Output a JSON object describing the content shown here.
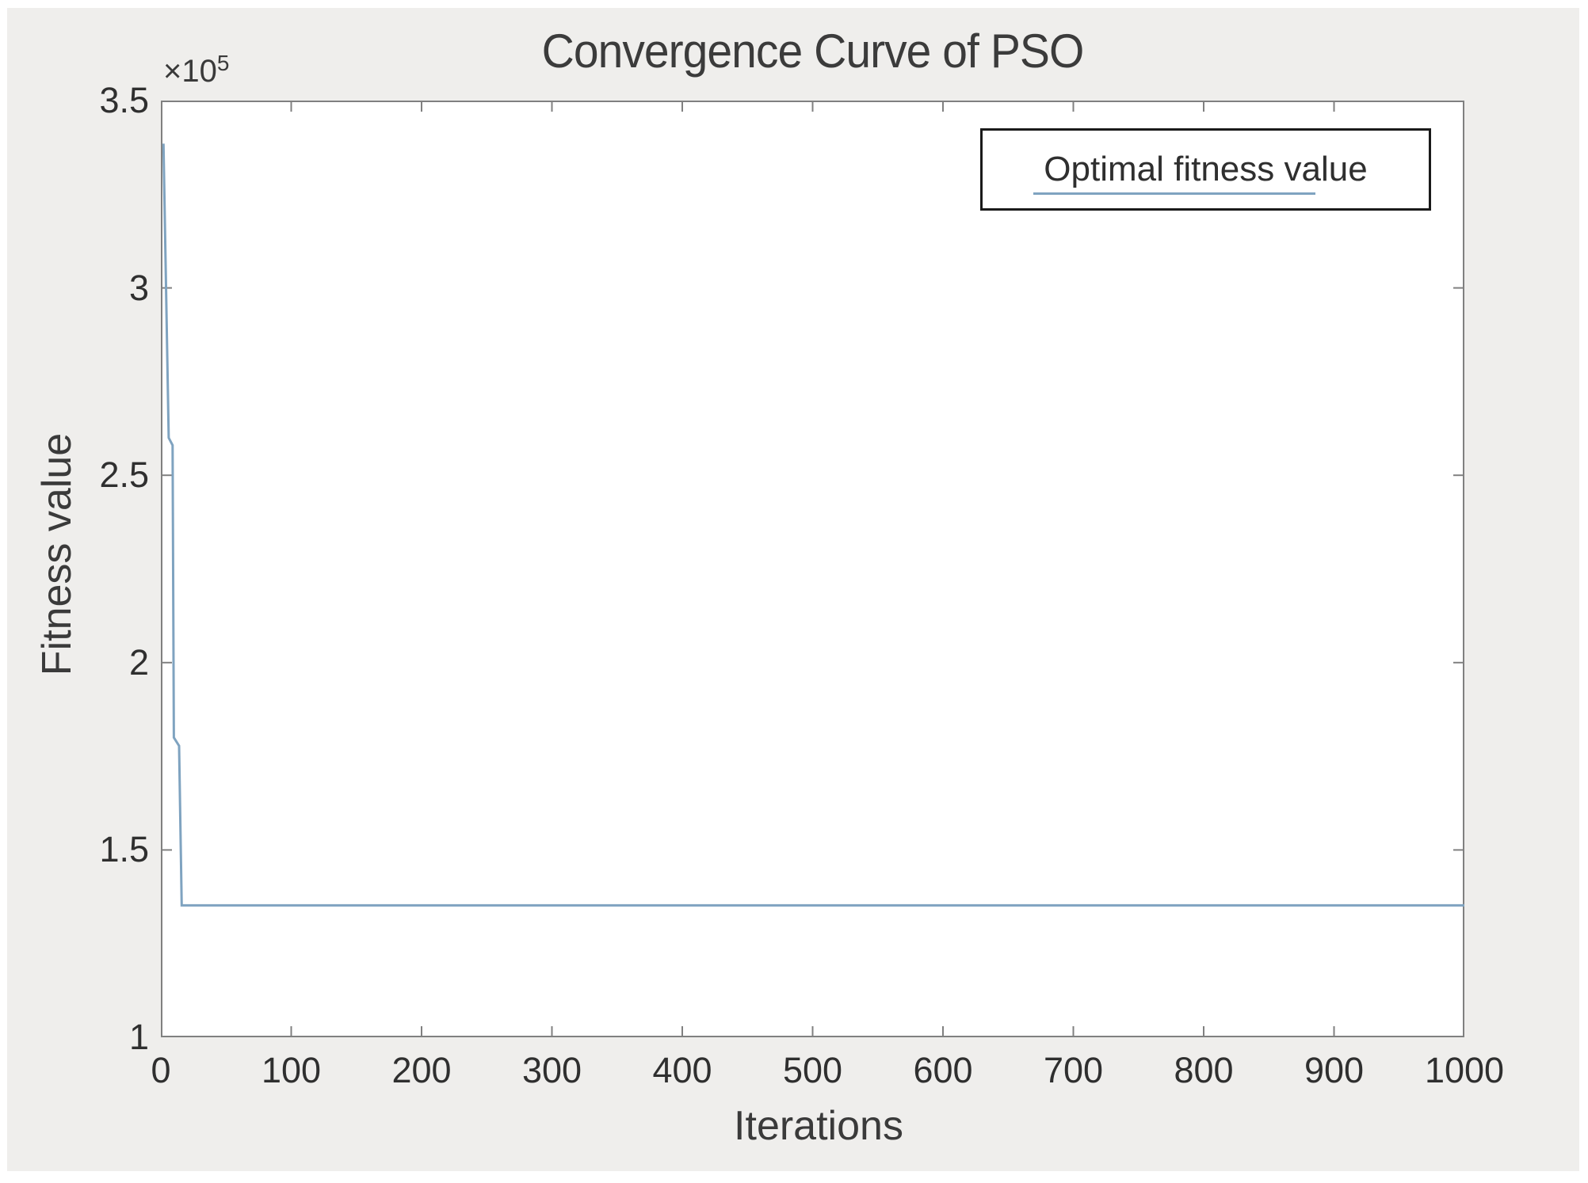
{
  "figure": {
    "page_background": "#ffffff",
    "canvas_background": "#efeeec",
    "plot_background": "#ffffff"
  },
  "colors": {
    "axis_box": "#808080",
    "tick_mark": "#808080",
    "tick_label": "#2f2f2f",
    "title_text": "#3b3b3b",
    "series_line": "#7fa3c0",
    "legend_border": "#1a1a1a"
  },
  "chart_data": {
    "type": "line",
    "title": "Convergence Curve of PSO",
    "xlabel": "Iterations",
    "ylabel": "Fitness value",
    "y_scale_label": {
      "prefix": "×10",
      "exponent": "5"
    },
    "xlim": [
      0,
      1000
    ],
    "ylim": [
      100000,
      350000
    ],
    "x_ticks": [
      0,
      100,
      200,
      300,
      400,
      500,
      600,
      700,
      800,
      900,
      1000
    ],
    "y_ticks": [
      100000,
      150000,
      200000,
      250000,
      300000,
      350000
    ],
    "y_tick_labels": [
      "1",
      "1.5",
      "2",
      "2.5",
      "3",
      "3.5"
    ],
    "grid": false,
    "box": true,
    "tick_direction": "in",
    "legend": {
      "position": "top-right",
      "entries": [
        {
          "label": "Optimal fitness value",
          "color": "#7fa3c0"
        }
      ]
    },
    "series": [
      {
        "name": "Optimal fitness value",
        "color": "#7fa3c0",
        "points": [
          [
            2,
            338500
          ],
          [
            6,
            260000
          ],
          [
            9,
            258000
          ],
          [
            10,
            180000
          ],
          [
            14,
            177800
          ],
          [
            16,
            135200
          ],
          [
            1000,
            135200
          ]
        ]
      }
    ]
  }
}
